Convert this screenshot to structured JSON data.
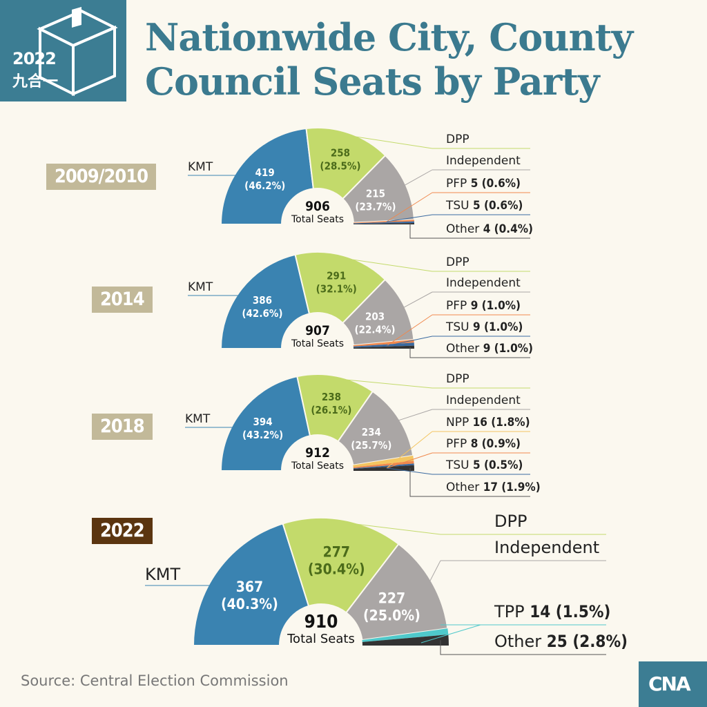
{
  "header": {
    "logo_year": "2022",
    "logo_subtitle": "九合一",
    "logo_icon": "ballot-box-icon",
    "title_line1": "Nationwide City, County",
    "title_line2": "Council Seats by Party"
  },
  "colors": {
    "KMT": "#3a83b1",
    "DPP": "#c3da6b",
    "Independent": "#aaa6a5",
    "PFP": "#f0884d",
    "TSU": "#3a6aa0",
    "NPP": "#f3c560",
    "TPP": "#4fc9cb",
    "Other": "#333333",
    "title": "#3b7a8f"
  },
  "chart_data": [
    {
      "type": "pie",
      "title": "2009/2010",
      "total": 906,
      "total_label": "Total Seats",
      "series": [
        {
          "name": "KMT",
          "value": 419,
          "pct": "46.2%"
        },
        {
          "name": "DPP",
          "value": 258,
          "pct": "28.5%"
        },
        {
          "name": "Independent",
          "value": 215,
          "pct": "23.7%"
        },
        {
          "name": "PFP",
          "value": 5,
          "pct": "0.6%"
        },
        {
          "name": "TSU",
          "value": 5,
          "pct": "0.6%"
        },
        {
          "name": "Other",
          "value": 4,
          "pct": "0.4%"
        }
      ]
    },
    {
      "type": "pie",
      "title": "2014",
      "total": 907,
      "total_label": "Total Seats",
      "series": [
        {
          "name": "KMT",
          "value": 386,
          "pct": "42.6%"
        },
        {
          "name": "DPP",
          "value": 291,
          "pct": "32.1%"
        },
        {
          "name": "Independent",
          "value": 203,
          "pct": "22.4%"
        },
        {
          "name": "PFP",
          "value": 9,
          "pct": "1.0%"
        },
        {
          "name": "TSU",
          "value": 9,
          "pct": "1.0%"
        },
        {
          "name": "Other",
          "value": 9,
          "pct": "1.0%"
        }
      ]
    },
    {
      "type": "pie",
      "title": "2018",
      "total": 912,
      "total_label": "Total Seats",
      "series": [
        {
          "name": "KMT",
          "value": 394,
          "pct": "43.2%"
        },
        {
          "name": "DPP",
          "value": 238,
          "pct": "26.1%"
        },
        {
          "name": "Independent",
          "value": 234,
          "pct": "25.7%"
        },
        {
          "name": "NPP",
          "value": 16,
          "pct": "1.8%"
        },
        {
          "name": "PFP",
          "value": 8,
          "pct": "0.9%"
        },
        {
          "name": "TSU",
          "value": 5,
          "pct": "0.5%"
        },
        {
          "name": "Other",
          "value": 17,
          "pct": "1.9%"
        }
      ]
    },
    {
      "type": "pie",
      "title": "2022",
      "total": 910,
      "total_label": "Total Seats",
      "series": [
        {
          "name": "KMT",
          "value": 367,
          "pct": "40.3%"
        },
        {
          "name": "DPP",
          "value": 277,
          "pct": "30.4%"
        },
        {
          "name": "Independent",
          "value": 227,
          "pct": "25.0%"
        },
        {
          "name": "TPP",
          "value": 14,
          "pct": "1.5%"
        },
        {
          "name": "Other",
          "value": 25,
          "pct": "2.8%"
        }
      ]
    }
  ],
  "footer": {
    "source": "Source: Central Election Commission",
    "logo": "CNA"
  }
}
